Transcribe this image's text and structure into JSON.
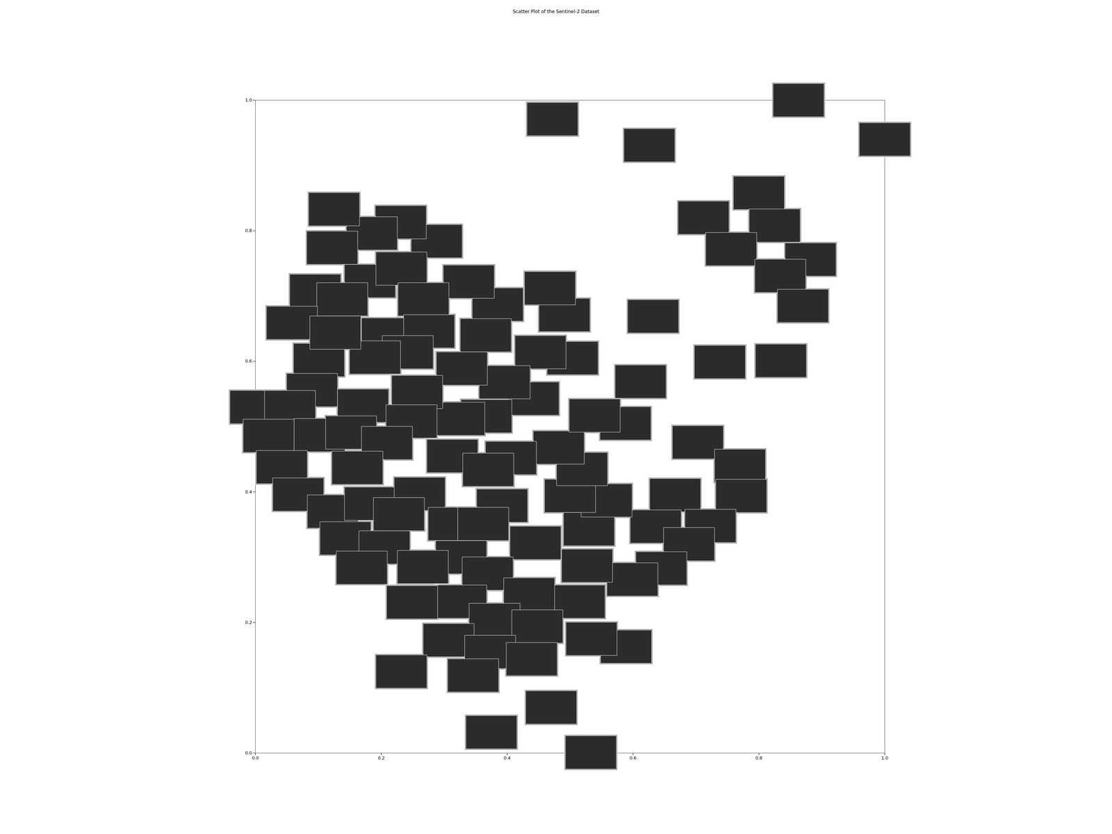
{
  "chart_data": {
    "type": "scatter",
    "title": "Scatter Plot of the Sentinel-2 Dataset",
    "marker": "rect",
    "color": "#2b2b2b",
    "x": [
      0.472,
      0.626,
      0.863,
      1.0,
      0.8,
      0.712,
      0.825,
      0.756,
      0.882,
      0.834,
      0.87,
      0.632,
      0.738,
      0.835,
      0.612,
      0.588,
      0.703,
      0.77,
      0.772,
      0.667,
      0.723,
      0.636,
      0.689,
      0.645,
      0.599,
      0.589,
      0.534,
      0.515,
      0.527,
      0.53,
      0.558,
      0.5,
      0.519,
      0.482,
      0.539,
      0.504,
      0.453,
      0.442,
      0.396,
      0.367,
      0.491,
      0.468,
      0.385,
      0.366,
      0.339,
      0.328,
      0.324,
      0.288,
      0.231,
      0.185,
      0.125,
      0.122,
      0.182,
      0.232,
      0.095,
      0.138,
      0.058,
      0.267,
      0.209,
      0.276,
      0.242,
      0.101,
      0.19,
      0.127,
      0.09,
      0.0,
      0.055,
      0.171,
      0.257,
      0.248,
      0.021,
      0.102,
      0.152,
      0.209,
      0.313,
      0.406,
      0.37,
      0.162,
      0.042,
      0.068,
      0.123,
      0.182,
      0.261,
      0.228,
      0.392,
      0.315,
      0.362,
      0.445,
      0.143,
      0.205,
      0.327,
      0.266,
      0.169,
      0.369,
      0.435,
      0.327,
      0.249,
      0.38,
      0.448,
      0.307,
      0.373,
      0.439,
      0.232,
      0.346,
      0.47,
      0.375,
      0.533
    ],
    "y": [
      0.971,
      0.931,
      1.0,
      0.94,
      0.858,
      0.82,
      0.808,
      0.772,
      0.756,
      0.731,
      0.685,
      0.669,
      0.599,
      0.601,
      0.569,
      0.505,
      0.476,
      0.44,
      0.394,
      0.395,
      0.348,
      0.347,
      0.32,
      0.283,
      0.266,
      0.163,
      0.175,
      0.232,
      0.287,
      0.343,
      0.387,
      0.394,
      0.435,
      0.468,
      0.517,
      0.605,
      0.614,
      0.543,
      0.568,
      0.516,
      0.671,
      0.712,
      0.687,
      0.64,
      0.722,
      0.589,
      0.512,
      0.784,
      0.813,
      0.796,
      0.833,
      0.774,
      0.723,
      0.742,
      0.708,
      0.695,
      0.659,
      0.695,
      0.641,
      0.646,
      0.614,
      0.602,
      0.606,
      0.644,
      0.556,
      0.53,
      0.53,
      0.532,
      0.553,
      0.508,
      0.486,
      0.487,
      0.491,
      0.475,
      0.455,
      0.452,
      0.434,
      0.437,
      0.438,
      0.396,
      0.37,
      0.382,
      0.397,
      0.366,
      0.379,
      0.351,
      0.351,
      0.322,
      0.329,
      0.315,
      0.3,
      0.285,
      0.284,
      0.275,
      0.243,
      0.232,
      0.231,
      0.204,
      0.194,
      0.173,
      0.155,
      0.144,
      0.125,
      0.119,
      0.07,
      0.032,
      0.001
    ],
    "xlim": [
      0,
      1
    ],
    "ylim": [
      0,
      1
    ],
    "xticks": [
      {
        "value": 0,
        "label": "0.0"
      },
      0.2,
      0.4,
      0.6,
      0.8,
      {
        "value": 1,
        "label": "1.0"
      }
    ],
    "yticks": [
      {
        "value": 0,
        "label": "0.0"
      },
      0.2,
      0.4,
      0.6,
      0.8,
      {
        "value": 1,
        "label": "1.0"
      }
    ],
    "grid": false
  }
}
